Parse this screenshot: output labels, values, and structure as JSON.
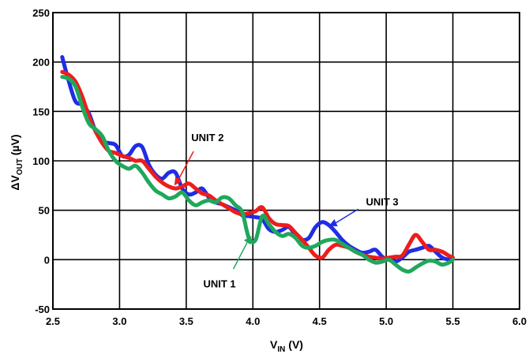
{
  "chart_data": {
    "type": "line",
    "xlabel_main": "V",
    "xlabel_sub": "IN",
    "xlabel_unit": " (V)",
    "ylabel_prefix": "ΔV",
    "ylabel_sub": "OUT",
    "ylabel_unit": " (µV)",
    "xlim": [
      2.5,
      6.0
    ],
    "ylim": [
      -50,
      250
    ],
    "x_ticks": [
      "2.5",
      "3.0",
      "3.5",
      "4.0",
      "4.5",
      "5.0",
      "5.5",
      "6.0"
    ],
    "y_ticks": [
      "250",
      "200",
      "150",
      "100",
      "50",
      "0",
      "-50"
    ],
    "grid": true,
    "series": [
      {
        "name": "UNIT 3",
        "color": "#1f2de6",
        "x": [
          2.57,
          2.62,
          2.67,
          2.72,
          2.77,
          2.82,
          2.87,
          2.92,
          2.97,
          3.02,
          3.07,
          3.12,
          3.17,
          3.22,
          3.27,
          3.32,
          3.37,
          3.42,
          3.47,
          3.52,
          3.57,
          3.62,
          3.67,
          3.72,
          3.77,
          3.82,
          3.87,
          3.92,
          3.97,
          4.02,
          4.07,
          4.12,
          4.17,
          4.22,
          4.27,
          4.32,
          4.37,
          4.42,
          4.47,
          4.52,
          4.57,
          4.62,
          4.67,
          4.72,
          4.77,
          4.82,
          4.87,
          4.92,
          4.97,
          5.02,
          5.07,
          5.12,
          5.17,
          5.22,
          5.27,
          5.32,
          5.37,
          5.42,
          5.47,
          5.5
        ],
        "y": [
          205,
          180,
          160,
          157,
          148,
          130,
          120,
          118,
          116,
          105,
          106,
          115,
          114,
          96,
          86,
          82,
          88,
          88,
          72,
          66,
          68,
          72,
          63,
          58,
          56,
          53,
          50,
          45,
          44,
          43,
          41,
          31,
          28,
          30,
          33,
          25,
          20,
          22,
          33,
          38,
          35,
          28,
          20,
          14,
          10,
          7,
          8,
          10,
          3,
          0,
          -2,
          2,
          8,
          10,
          12,
          14,
          8,
          2,
          0,
          0
        ]
      },
      {
        "name": "UNIT 2",
        "color": "#ee1c1c",
        "x": [
          2.57,
          2.62,
          2.67,
          2.72,
          2.77,
          2.82,
          2.87,
          2.92,
          2.97,
          3.02,
          3.07,
          3.12,
          3.17,
          3.22,
          3.27,
          3.32,
          3.37,
          3.42,
          3.47,
          3.52,
          3.57,
          3.62,
          3.67,
          3.72,
          3.77,
          3.82,
          3.87,
          3.92,
          3.97,
          4.02,
          4.07,
          4.12,
          4.17,
          4.22,
          4.27,
          4.32,
          4.37,
          4.42,
          4.47,
          4.52,
          4.57,
          4.62,
          4.67,
          4.72,
          4.77,
          4.82,
          4.87,
          4.92,
          4.97,
          5.02,
          5.07,
          5.12,
          5.17,
          5.22,
          5.27,
          5.32,
          5.37,
          5.42,
          5.47,
          5.5
        ],
        "y": [
          190,
          187,
          180,
          165,
          145,
          130,
          118,
          110,
          108,
          105,
          103,
          100,
          100,
          92,
          84,
          78,
          74,
          72,
          74,
          77,
          72,
          67,
          65,
          60,
          56,
          52,
          48,
          46,
          47,
          49,
          53,
          42,
          36,
          35,
          34,
          27,
          20,
          12,
          4,
          2,
          10,
          15,
          14,
          12,
          8,
          5,
          3,
          2,
          1,
          2,
          3,
          4,
          15,
          25,
          18,
          10,
          10,
          8,
          4,
          2
        ]
      },
      {
        "name": "UNIT 1",
        "color": "#1fa85c",
        "x": [
          2.57,
          2.62,
          2.67,
          2.72,
          2.77,
          2.82,
          2.87,
          2.92,
          2.97,
          3.02,
          3.07,
          3.12,
          3.17,
          3.22,
          3.27,
          3.32,
          3.37,
          3.42,
          3.47,
          3.52,
          3.57,
          3.62,
          3.67,
          3.72,
          3.77,
          3.82,
          3.87,
          3.92,
          3.97,
          4.02,
          4.07,
          4.12,
          4.17,
          4.22,
          4.27,
          4.32,
          4.37,
          4.42,
          4.47,
          4.52,
          4.57,
          4.62,
          4.67,
          4.72,
          4.77,
          4.82,
          4.87,
          4.92,
          4.97,
          5.02,
          5.07,
          5.12,
          5.17,
          5.22,
          5.27,
          5.32,
          5.37,
          5.42,
          5.47,
          5.5
        ],
        "y": [
          185,
          183,
          175,
          155,
          138,
          132,
          125,
          110,
          100,
          95,
          92,
          95,
          88,
          78,
          70,
          66,
          62,
          64,
          68,
          60,
          55,
          58,
          60,
          58,
          63,
          62,
          55,
          48,
          22,
          20,
          44,
          36,
          28,
          24,
          26,
          22,
          14,
          12,
          14,
          18,
          20,
          20,
          16,
          12,
          8,
          5,
          0,
          -3,
          -2,
          0,
          -5,
          -10,
          -12,
          -8,
          -4,
          -1,
          -2,
          -5,
          -3,
          0
        ]
      }
    ],
    "annotations": [
      {
        "text": "UNIT 2",
        "series": "UNIT 2",
        "color": "#ee1c1c",
        "label_x": 3.66,
        "label_y": 124,
        "arrow_to_x": 3.41,
        "arrow_to_y": 75
      },
      {
        "text": "UNIT 3",
        "series": "UNIT 3",
        "color": "#1f2de6",
        "label_x": 4.97,
        "label_y": 59,
        "arrow_to_x": 4.57,
        "arrow_to_y": 34
      },
      {
        "text": "UNIT 1",
        "series": "UNIT 1",
        "color": "#1fa85c",
        "label_x": 3.75,
        "label_y": -24,
        "arrow_to_x": 3.99,
        "arrow_to_y": 24
      }
    ]
  }
}
